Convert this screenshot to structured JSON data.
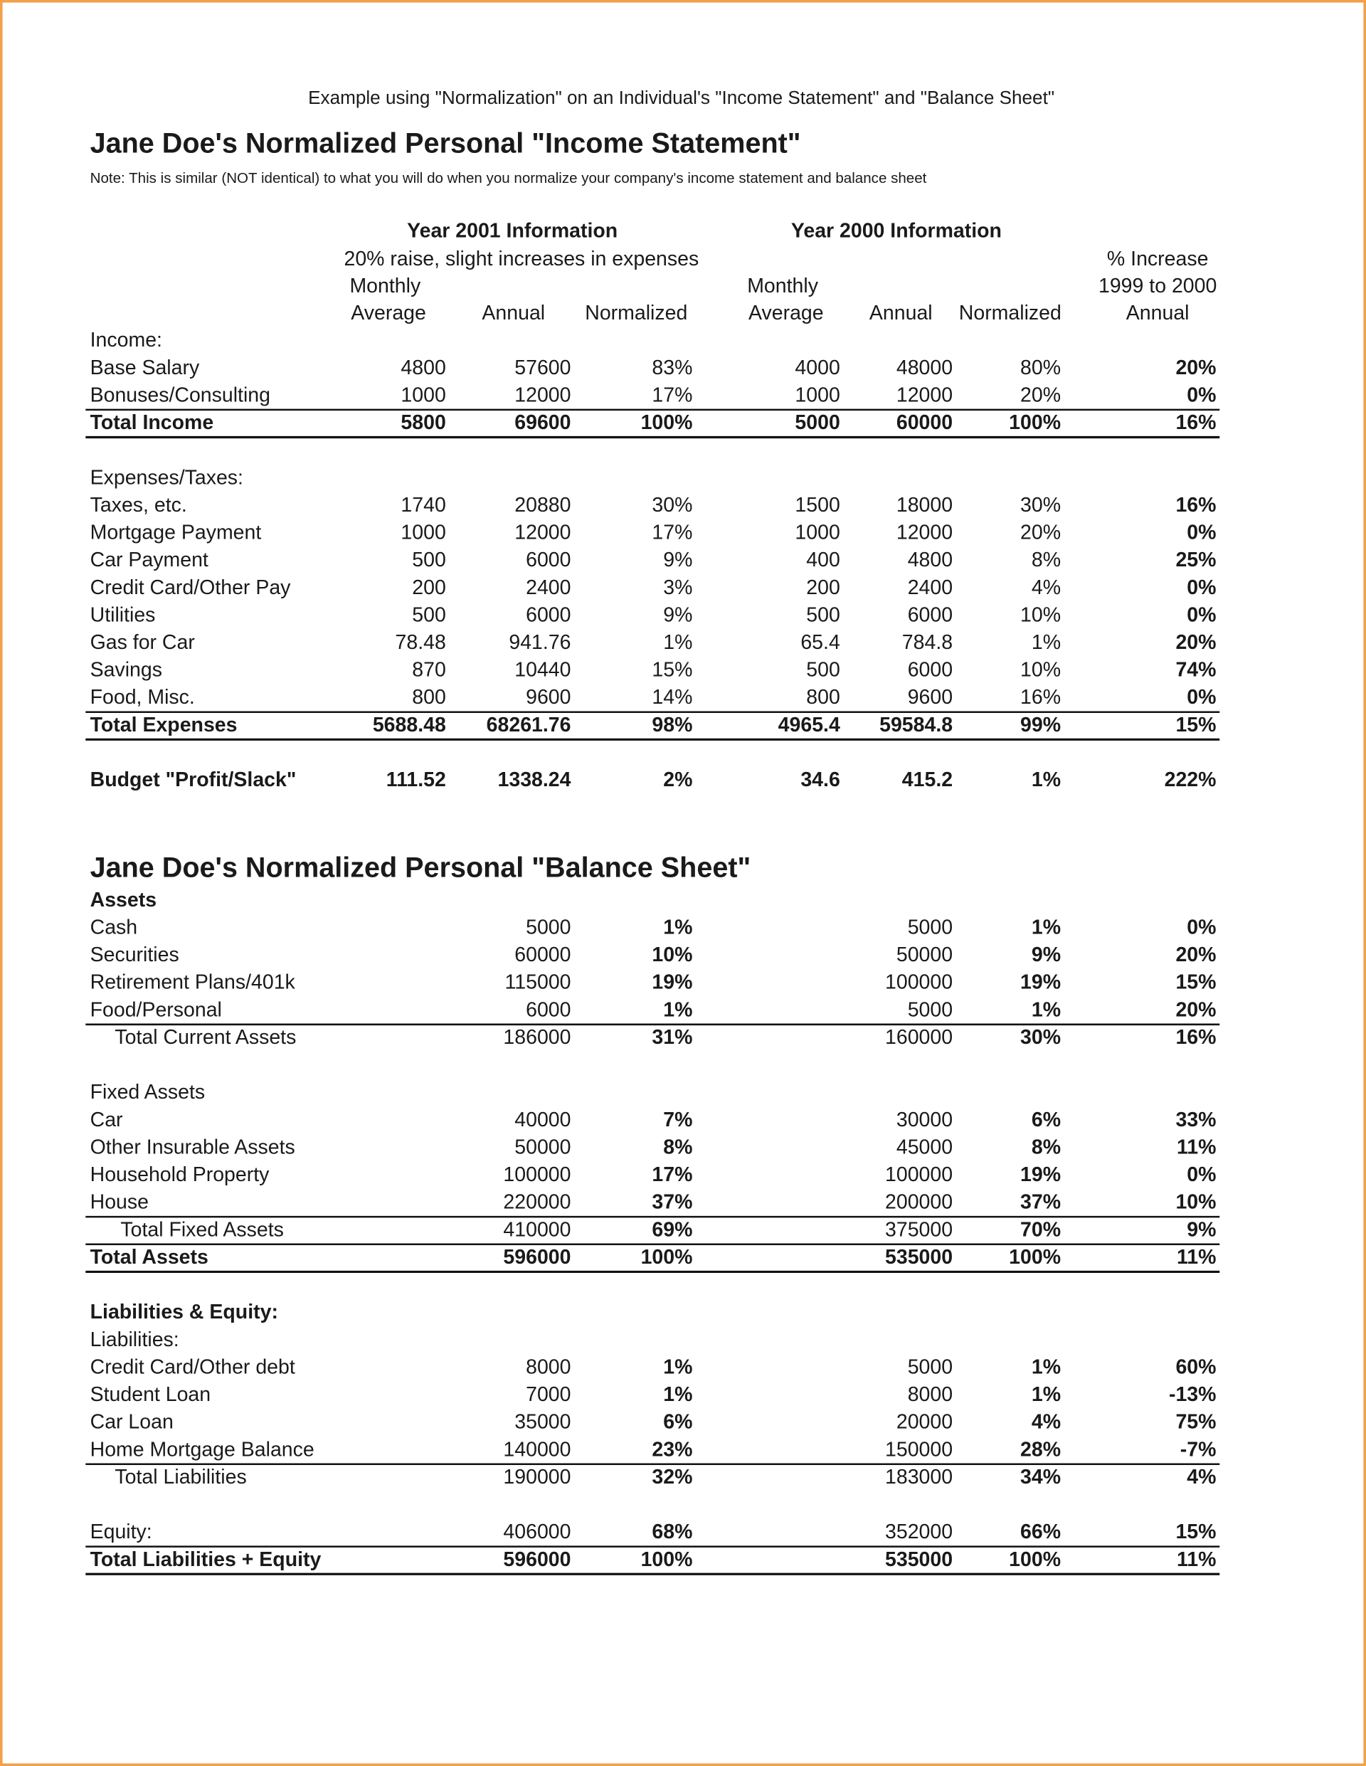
{
  "header": {
    "heading": "Example using \"Normalization\" on an Individual's \"Income Statement\" and \"Balance Sheet\""
  },
  "income_statement": {
    "title": "Jane Doe's Normalized Personal \"Income Statement\"",
    "note": "Note:  This is similar (NOT identical) to what you will do when you normalize your company's income statement and balance sheet",
    "column_headers": [
      "Year 2001 Information",
      "Year 2000 Information",
      "20% raise, slight increases in expenses",
      "% Increase",
      "Monthly",
      "Monthly",
      "1999 to 2000",
      "Average",
      "Annual",
      "Normalized",
      "Average",
      "Annual",
      "Normalized",
      "Annual"
    ],
    "rows": [
      {
        "label": "Income:",
        "cells": []
      },
      {
        "label": "Base Salary",
        "cells": [
          "4800",
          "57600",
          "83%",
          "4000",
          "48000",
          "80%",
          "20%"
        ]
      },
      {
        "label": "Bonuses/Consulting",
        "cells": [
          "1000",
          "12000",
          "17%",
          "1000",
          "12000",
          "20%",
          "0%"
        ]
      },
      {
        "label": "Total Income",
        "cells": [
          "5800",
          "69600",
          "100%",
          "5000",
          "60000",
          "100%",
          "16%"
        ]
      },
      {
        "label": "Expenses/Taxes:",
        "cells": []
      },
      {
        "label": "Taxes, etc.",
        "cells": [
          "1740",
          "20880",
          "30%",
          "1500",
          "18000",
          "30%",
          "16%"
        ]
      },
      {
        "label": "Mortgage Payment",
        "cells": [
          "1000",
          "12000",
          "17%",
          "1000",
          "12000",
          "20%",
          "0%"
        ]
      },
      {
        "label": "Car Payment",
        "cells": [
          "500",
          "6000",
          "9%",
          "400",
          "4800",
          "8%",
          "25%"
        ]
      },
      {
        "label": "Credit Card/Other Pay",
        "cells": [
          "200",
          "2400",
          "3%",
          "200",
          "2400",
          "4%",
          "0%"
        ]
      },
      {
        "label": "Utilities",
        "cells": [
          "500",
          "6000",
          "9%",
          "500",
          "6000",
          "10%",
          "0%"
        ]
      },
      {
        "label": "Gas for Car",
        "cells": [
          "78.48",
          "941.76",
          "1%",
          "65.4",
          "784.8",
          "1%",
          "20%"
        ]
      },
      {
        "label": "Savings",
        "cells": [
          "870",
          "10440",
          "15%",
          "500",
          "6000",
          "10%",
          "74%"
        ]
      },
      {
        "label": "Food, Misc.",
        "cells": [
          "800",
          "9600",
          "14%",
          "800",
          "9600",
          "16%",
          "0%"
        ]
      },
      {
        "label": "Total Expenses",
        "cells": [
          "5688.48",
          "68261.76",
          "98%",
          "4965.4",
          "59584.8",
          "99%",
          "15%"
        ]
      },
      {
        "label": "Budget \"Profit/Slack\"",
        "cells": [
          "111.52",
          "1338.24",
          "2%",
          "34.6",
          "415.2",
          "1%",
          "222%"
        ]
      }
    ]
  },
  "balance_sheet": {
    "title": "Jane Doe's Normalized Personal \"Balance Sheet\"",
    "rows": [
      {
        "label": "Assets",
        "cells": []
      },
      {
        "label": "Cash",
        "cells": [
          "5000",
          "1%",
          "5000",
          "1%",
          "0%"
        ]
      },
      {
        "label": "Securities",
        "cells": [
          "60000",
          "10%",
          "50000",
          "9%",
          "20%"
        ]
      },
      {
        "label": "Retirement Plans/401k",
        "cells": [
          "115000",
          "19%",
          "100000",
          "19%",
          "15%"
        ]
      },
      {
        "label": "Food/Personal",
        "cells": [
          "6000",
          "1%",
          "5000",
          "1%",
          "20%"
        ]
      },
      {
        "label": "Total Current Assets",
        "cells": [
          "186000",
          "31%",
          "160000",
          "30%",
          "16%"
        ]
      },
      {
        "label": "Fixed Assets",
        "cells": []
      },
      {
        "label": "Car",
        "cells": [
          "40000",
          "7%",
          "30000",
          "6%",
          "33%"
        ]
      },
      {
        "label": "Other Insurable Assets",
        "cells": [
          "50000",
          "8%",
          "45000",
          "8%",
          "11%"
        ]
      },
      {
        "label": "Household Property",
        "cells": [
          "100000",
          "17%",
          "100000",
          "19%",
          "0%"
        ]
      },
      {
        "label": "House",
        "cells": [
          "220000",
          "37%",
          "200000",
          "37%",
          "10%"
        ]
      },
      {
        "label": "Total Fixed Assets",
        "cells": [
          "410000",
          "69%",
          "375000",
          "70%",
          "9%"
        ]
      },
      {
        "label": "Total Assets",
        "cells": [
          "596000",
          "100%",
          "535000",
          "100%",
          "11%"
        ]
      },
      {
        "label": "Liabilities & Equity:",
        "cells": []
      },
      {
        "label": "Liabilities:",
        "cells": []
      },
      {
        "label": "Credit Card/Other debt",
        "cells": [
          "8000",
          "1%",
          "5000",
          "1%",
          "60%"
        ]
      },
      {
        "label": "Student Loan",
        "cells": [
          "7000",
          "1%",
          "8000",
          "1%",
          "-13%"
        ]
      },
      {
        "label": "Car Loan",
        "cells": [
          "35000",
          "6%",
          "20000",
          "4%",
          "75%"
        ]
      },
      {
        "label": "Home Mortgage Balance",
        "cells": [
          "140000",
          "23%",
          "150000",
          "28%",
          "-7%"
        ]
      },
      {
        "label": "Total Liabilities",
        "cells": [
          "190000",
          "32%",
          "183000",
          "34%",
          "4%"
        ]
      },
      {
        "label": "Equity:",
        "cells": [
          "406000",
          "68%",
          "352000",
          "66%",
          "15%"
        ]
      },
      {
        "label": "Total Liabilities + Equity",
        "cells": [
          "596000",
          "100%",
          "535000",
          "100%",
          "11%"
        ]
      }
    ]
  }
}
